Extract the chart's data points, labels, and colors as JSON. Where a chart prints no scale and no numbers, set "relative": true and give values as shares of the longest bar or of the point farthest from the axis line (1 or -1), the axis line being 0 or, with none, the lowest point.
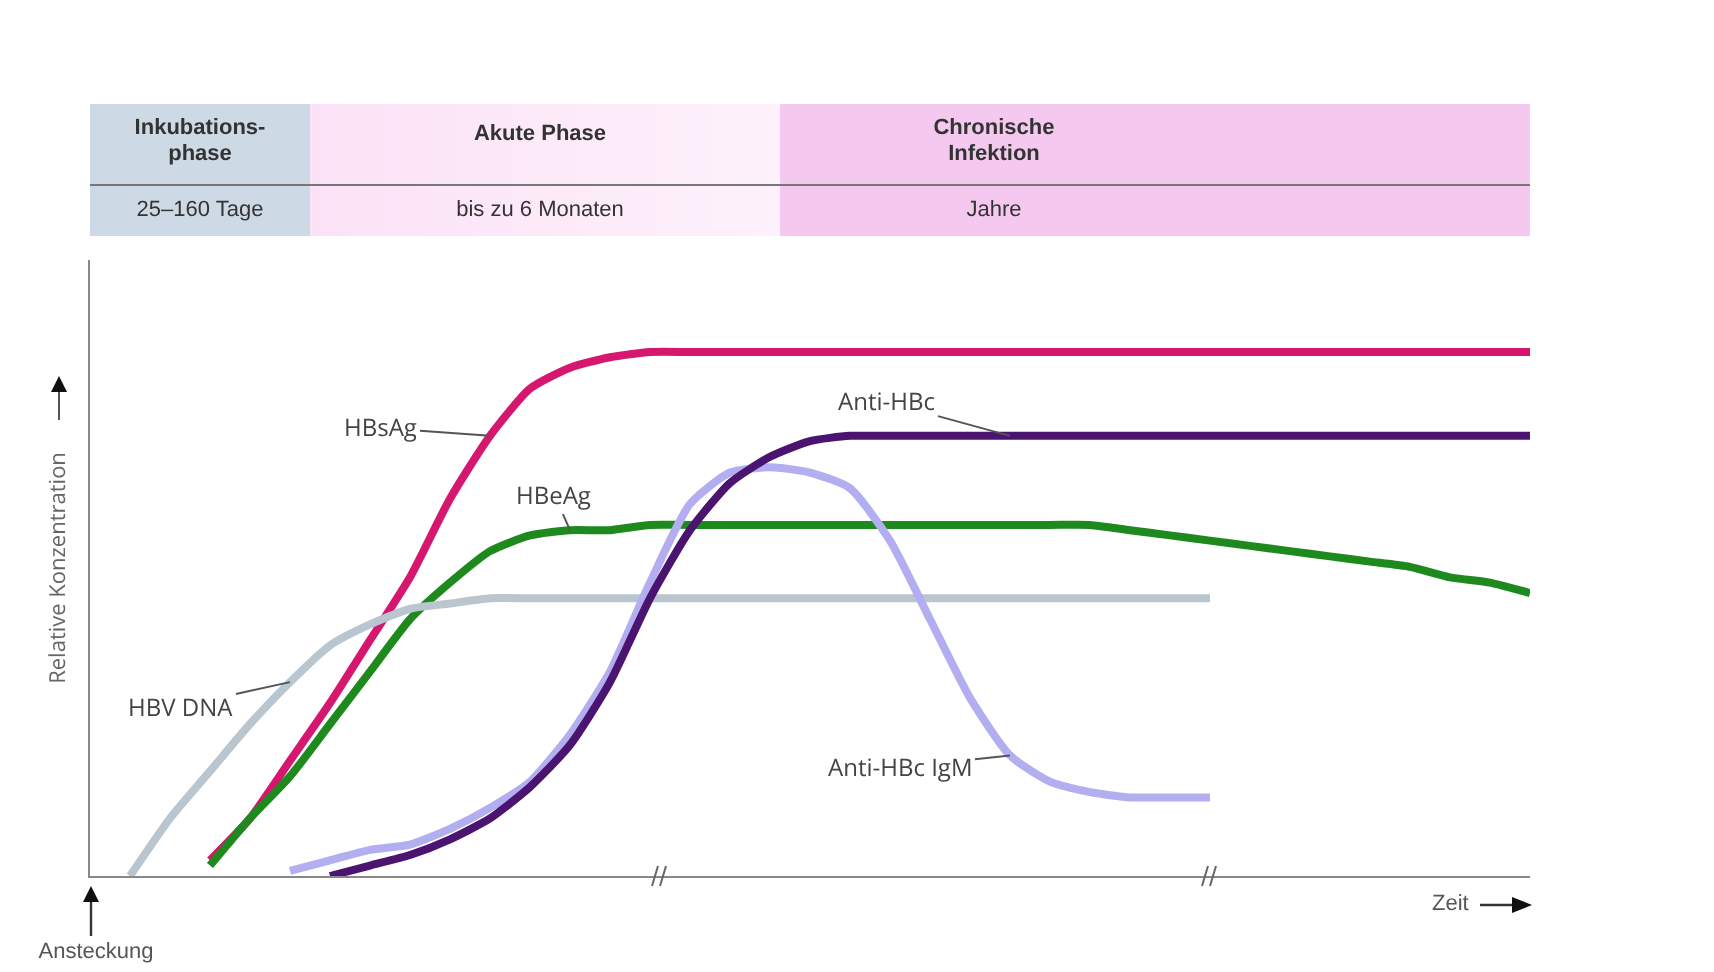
{
  "chart_data": {
    "type": "line",
    "relative": true,
    "ylabel": "Relative Konzentration",
    "legend": false,
    "grid": false,
    "categories": [
      null,
      null,
      null,
      null,
      null,
      null,
      null,
      null,
      null,
      null,
      null,
      null,
      null,
      null,
      null,
      null,
      null,
      null,
      null,
      null,
      null,
      null,
      null,
      null,
      null,
      null,
      null,
      null,
      null,
      null,
      null,
      null,
      null,
      null,
      null,
      null,
      null
    ],
    "series": [
      {
        "name": "HBsAg",
        "color": "#d6176f",
        "values": [
          null,
          null,
          null,
          0.03,
          0.11,
          0.22,
          0.33,
          0.45,
          0.57,
          0.72,
          0.84,
          0.93,
          0.97,
          0.99,
          1,
          1,
          1,
          1,
          1,
          1,
          1,
          1,
          1,
          1,
          1,
          1,
          1,
          1,
          1,
          1,
          1,
          1,
          1,
          1,
          1,
          1,
          1
        ]
      },
      {
        "name": "HBeAg",
        "color": "#1e8a1e",
        "values": [
          null,
          null,
          null,
          0.02,
          0.11,
          0.19,
          0.29,
          0.39,
          0.49,
          0.56,
          0.62,
          0.65,
          0.66,
          0.66,
          0.67,
          0.67,
          0.67,
          0.67,
          0.67,
          0.67,
          0.67,
          0.67,
          0.67,
          0.67,
          0.67,
          0.67,
          0.66,
          0.65,
          0.64,
          0.63,
          0.62,
          0.61,
          0.6,
          0.59,
          0.57,
          0.56,
          0.54
        ]
      },
      {
        "name": "HBV DNA",
        "color": "#b9c6cf",
        "values": [
          null,
          0,
          0.11,
          0.2,
          0.29,
          0.37,
          0.44,
          0.48,
          0.51,
          0.52,
          0.53,
          0.53,
          0.53,
          0.53,
          0.53,
          0.53,
          0.53,
          0.53,
          0.53,
          0.53,
          0.53,
          0.53,
          0.53,
          0.53,
          0.53,
          0.53,
          0.53,
          0.53,
          0.53,
          null,
          null,
          null,
          null,
          null,
          null,
          null,
          null
        ]
      },
      {
        "name": "Anti-HBc IgM",
        "color": "#b3aef0",
        "values": [
          null,
          null,
          null,
          null,
          null,
          0.01,
          0.03,
          0.05,
          0.06,
          0.09,
          0.13,
          0.18,
          0.27,
          0.39,
          0.56,
          0.71,
          0.77,
          0.78,
          0.77,
          0.74,
          0.64,
          0.49,
          0.34,
          0.23,
          0.18,
          0.16,
          0.15,
          0.15,
          0.15,
          null,
          null,
          null,
          null,
          null,
          null,
          null,
          null
        ]
      },
      {
        "name": "Anti-HBc",
        "color": "#4a1470",
        "values": [
          null,
          null,
          null,
          null,
          null,
          null,
          0,
          0.02,
          0.04,
          0.07,
          0.11,
          0.17,
          0.25,
          0.37,
          0.53,
          0.66,
          0.75,
          0.8,
          0.83,
          0.84,
          0.84,
          0.84,
          0.84,
          0.84,
          0.84,
          0.84,
          0.84,
          0.84,
          0.84,
          0.84,
          0.84,
          0.84,
          0.84,
          0.84,
          0.84,
          0.84,
          0.84
        ]
      }
    ],
    "annotations": [
      "Inkubations-\nphase",
      "25–160 Tage",
      "Akute Phase",
      "bis zu 6 Monaten",
      "Chronische\nInfektion",
      "Jahre",
      "Ansteckung",
      "Zeit"
    ]
  }
}
